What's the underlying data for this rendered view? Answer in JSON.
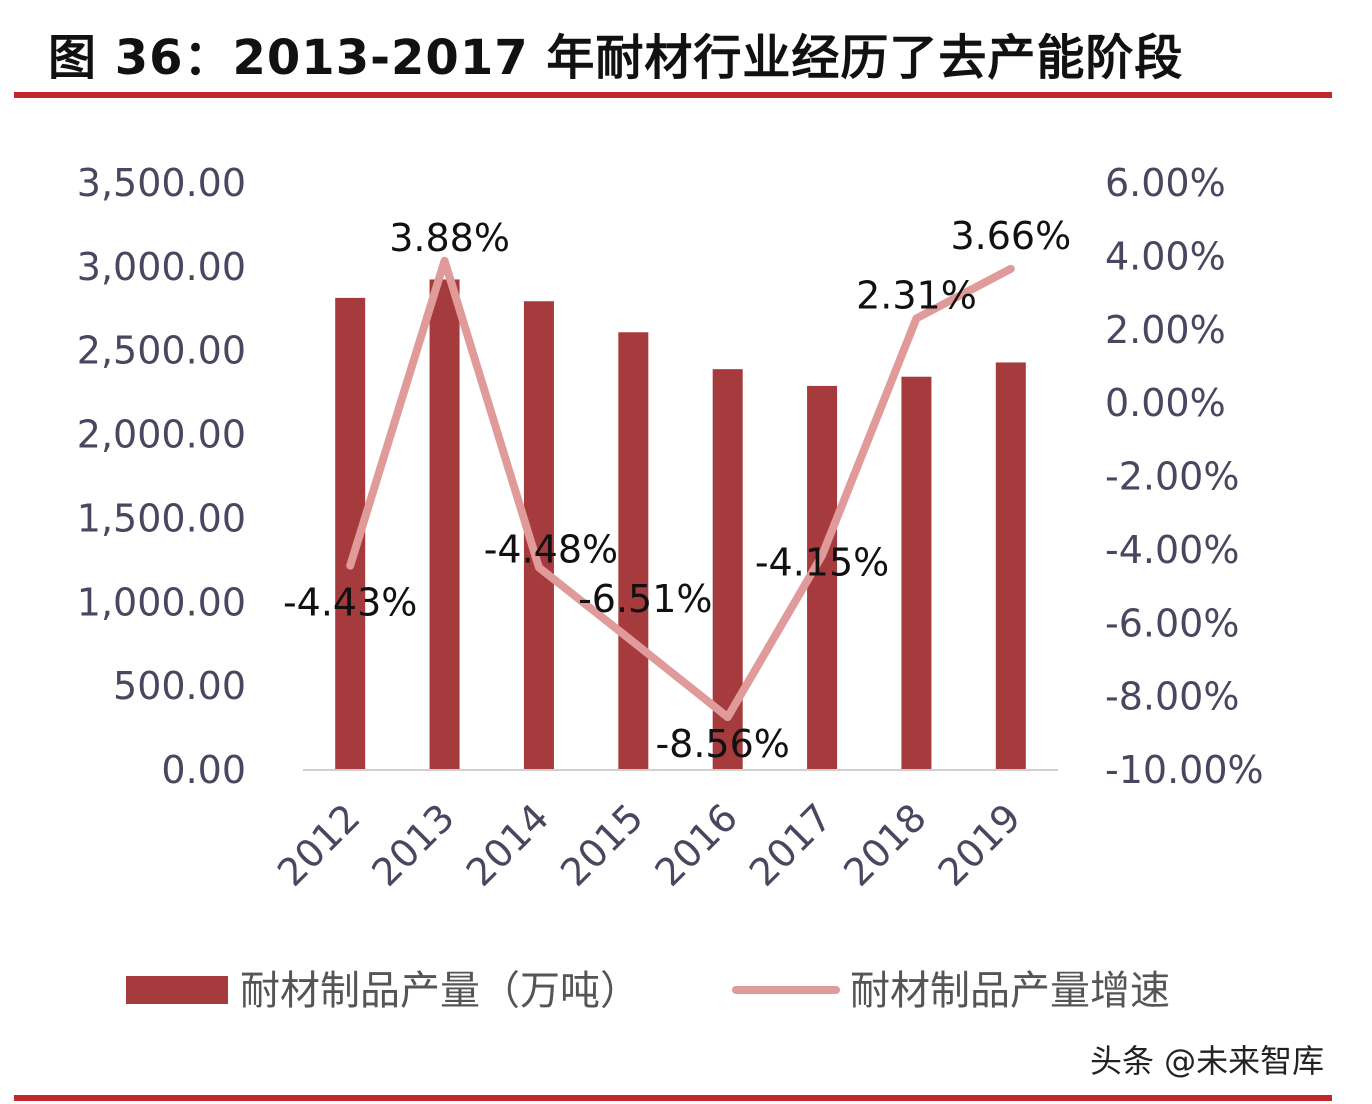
{
  "title": "图 36：2013-2017 年耐材行业经历了去产能阶段",
  "watermark": "头条 @未来智库",
  "colors": {
    "bar": "#a53b3c",
    "line": "#e09a9a",
    "rule": "#c0282d",
    "tick": "#4a4660",
    "axis": "#d0d0d0"
  },
  "chart_data": {
    "type": "bar",
    "categories": [
      "2012",
      "2013",
      "2014",
      "2015",
      "2016",
      "2017",
      "2018",
      "2019"
    ],
    "series": [
      {
        "name": "耐材制品产量（万吨）",
        "type": "bar",
        "axis": "left",
        "values": [
          2815,
          2925,
          2795,
          2610,
          2390,
          2290,
          2345,
          2430
        ]
      },
      {
        "name": "耐材制品产量增速",
        "type": "line",
        "axis": "right",
        "values": [
          -4.43,
          3.88,
          -4.48,
          -6.51,
          -8.56,
          -4.15,
          2.31,
          3.66
        ],
        "labels": [
          "-4.43%",
          "3.88%",
          "-4.48%",
          "-6.51%",
          "-8.56%",
          "-4.15%",
          "2.31%",
          "3.66%"
        ]
      }
    ],
    "ylim_left": [
      0,
      3500
    ],
    "ylim_right": [
      -10,
      6
    ],
    "y_ticks_left": [
      "0.00",
      "500.00",
      "1,000.00",
      "1,500.00",
      "2,000.00",
      "2,500.00",
      "3,000.00",
      "3,500.00"
    ],
    "y_ticks_right": [
      "-10.00%",
      "-8.00%",
      "-6.00%",
      "-4.00%",
      "-2.00%",
      "0.00%",
      "2.00%",
      "4.00%",
      "6.00%"
    ],
    "legend_position": "bottom",
    "grid": false
  }
}
